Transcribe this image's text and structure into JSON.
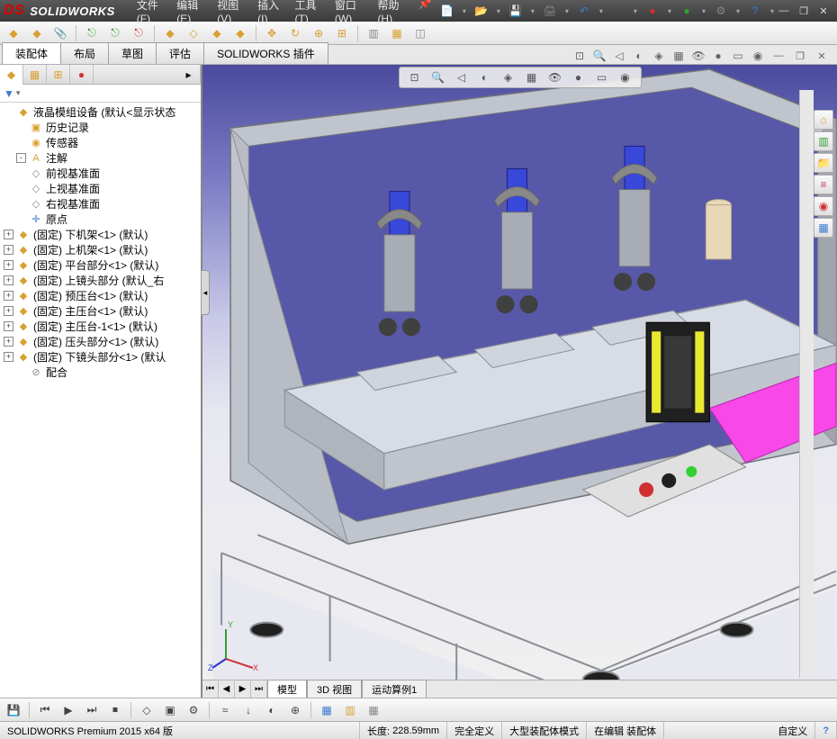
{
  "app": {
    "title": "SOLIDWORKS",
    "logo_prefix": "DS"
  },
  "menu": {
    "items": [
      {
        "label": "文件(F)"
      },
      {
        "label": "编辑(E)"
      },
      {
        "label": "视图(V)"
      },
      {
        "label": "插入(I)"
      },
      {
        "label": "工具(T)"
      },
      {
        "label": "窗口(W)"
      },
      {
        "label": "帮助(H)"
      }
    ]
  },
  "title_icons": [
    {
      "name": "new-icon",
      "glyph": "📄",
      "color": "#fff"
    },
    {
      "name": "open-icon",
      "glyph": "📂",
      "color": "#e8a030"
    },
    {
      "name": "save-icon",
      "glyph": "💾",
      "color": "#3a6ad0"
    },
    {
      "name": "print-icon",
      "glyph": "🖨",
      "color": "#888"
    },
    {
      "name": "undo-icon",
      "glyph": "↶",
      "color": "#3a7ad0"
    },
    {
      "name": "select-icon",
      "glyph": "▭",
      "color": "#444"
    },
    {
      "name": "rebuild-red-icon",
      "glyph": "●",
      "color": "#d03030"
    },
    {
      "name": "rebuild-green-icon",
      "glyph": "●",
      "color": "#30a030"
    },
    {
      "name": "options-icon",
      "glyph": "⚙",
      "color": "#888"
    },
    {
      "name": "help-icon",
      "glyph": "?",
      "color": "#3a7ad0"
    }
  ],
  "toolbar1": [
    {
      "name": "assembly-icon",
      "glyph": "◆",
      "color": "#d8a030"
    },
    {
      "name": "insert-comp-icon",
      "glyph": "◆",
      "color": "#d8a030"
    },
    {
      "name": "clip-icon",
      "glyph": "📎",
      "color": "#888"
    },
    {
      "name": "link-icon",
      "glyph": "⎋",
      "color": "#30a030"
    },
    {
      "name": "link2-icon",
      "glyph": "⎋",
      "color": "#30a030"
    },
    {
      "name": "unlink-icon",
      "glyph": "⎋",
      "color": "#d03030"
    },
    {
      "name": "config-icon",
      "glyph": "◆",
      "color": "#d8a030"
    },
    {
      "name": "explode-icon",
      "glyph": "◇",
      "color": "#d8a030"
    },
    {
      "name": "new-asm-icon",
      "glyph": "◆",
      "color": "#d8a030"
    },
    {
      "name": "mate-icon",
      "glyph": "◆",
      "color": "#d8a030"
    },
    {
      "name": "move-icon",
      "glyph": "✥",
      "color": "#d8a030"
    },
    {
      "name": "rotate-icon",
      "glyph": "↻",
      "color": "#d8a030"
    },
    {
      "name": "smartmate-icon",
      "glyph": "⊕",
      "color": "#d8a030"
    },
    {
      "name": "pattern-icon",
      "glyph": "⊞",
      "color": "#d8a030"
    },
    {
      "name": "mirror-icon",
      "glyph": "▥",
      "color": "#888"
    },
    {
      "name": "bom-icon",
      "glyph": "▦",
      "color": "#d8a030"
    },
    {
      "name": "ref-icon",
      "glyph": "◫",
      "color": "#888"
    }
  ],
  "tabs": {
    "items": [
      {
        "label": "装配体",
        "active": true
      },
      {
        "label": "布局",
        "active": false
      },
      {
        "label": "草图",
        "active": false
      },
      {
        "label": "评估",
        "active": false
      },
      {
        "label": "SOLIDWORKS 插件",
        "active": false
      }
    ]
  },
  "viewport_toolbar": [
    {
      "name": "zoom-fit-icon",
      "glyph": "⊡"
    },
    {
      "name": "zoom-area-icon",
      "glyph": "🔍"
    },
    {
      "name": "prev-view-icon",
      "glyph": "◁"
    },
    {
      "name": "section-icon",
      "glyph": "◐"
    },
    {
      "name": "view-orient-icon",
      "glyph": "◈"
    },
    {
      "name": "display-style-icon",
      "glyph": "▦"
    },
    {
      "name": "hide-show-icon",
      "glyph": "👁"
    },
    {
      "name": "appearance-icon",
      "glyph": "●"
    },
    {
      "name": "scene-icon",
      "glyph": "▭"
    },
    {
      "name": "render-icon",
      "glyph": "◉"
    }
  ],
  "window_controls": {
    "min": "—",
    "max": "❐",
    "close": "✕",
    "inner_min": "—",
    "inner_max": "❐",
    "inner_close": "✕"
  },
  "side_tabs": [
    {
      "name": "feature-tree-icon",
      "glyph": "◆",
      "color": "#d8a030",
      "active": true
    },
    {
      "name": "property-icon",
      "glyph": "▦",
      "color": "#d8a030",
      "active": false
    },
    {
      "name": "config-mgr-icon",
      "glyph": "⊞",
      "color": "#d8a030",
      "active": false
    },
    {
      "name": "appearance-mgr-icon",
      "glyph": "●",
      "color": "#d03030",
      "active": false
    }
  ],
  "filter": {
    "glyph": "▼",
    "color": "#3a7ad0"
  },
  "tree": {
    "root": {
      "icon": "◆",
      "color": "#d8a030",
      "label": "液晶模组设备  (默认<显示状态"
    },
    "history": {
      "icon": "▣",
      "color": "#d8a030",
      "label": "历史记录"
    },
    "sensors": {
      "icon": "◉",
      "color": "#d8a030",
      "label": "传感器"
    },
    "annotations": {
      "icon": "A",
      "color": "#d8a030",
      "label": "注解",
      "expand": "-"
    },
    "planes": [
      {
        "icon": "◇",
        "color": "#888",
        "label": "前视基准面"
      },
      {
        "icon": "◇",
        "color": "#888",
        "label": "上视基准面"
      },
      {
        "icon": "◇",
        "color": "#888",
        "label": "右视基准面"
      }
    ],
    "origin": {
      "icon": "✛",
      "color": "#3a7ad0",
      "label": "原点"
    },
    "components": [
      {
        "label": "(固定) 下机架<1> (默认)"
      },
      {
        "label": "(固定) 上机架<1> (默认)"
      },
      {
        "label": "(固定) 平台部分<1> (默认)"
      },
      {
        "label": "(固定) 上镜头部分 (默认_右"
      },
      {
        "label": "(固定) 预压台<1> (默认)"
      },
      {
        "label": "(固定) 主压台<1> (默认)"
      },
      {
        "label": "(固定) 主压台-1<1> (默认)"
      },
      {
        "label": "(固定) 压头部分<1> (默认)"
      },
      {
        "label": "(固定) 下镜头部分<1> (默认"
      }
    ],
    "mates": {
      "icon": "⊘",
      "color": "#888",
      "label": "配合"
    }
  },
  "right_toolbar": [
    {
      "name": "home-icon",
      "glyph": "⌂",
      "color": "#d8a030"
    },
    {
      "name": "chart-icon",
      "glyph": "▥",
      "color": "#30a030"
    },
    {
      "name": "folder-icon",
      "glyph": "📁",
      "color": "#d8a030"
    },
    {
      "name": "layers-icon",
      "glyph": "≡",
      "color": "#d03080"
    },
    {
      "name": "color-icon",
      "glyph": "◉",
      "color": "#d03030"
    },
    {
      "name": "task-icon",
      "glyph": "▦",
      "color": "#3a7ad0"
    }
  ],
  "triad": {
    "x": "X",
    "y": "Y",
    "z": "Z",
    "x_color": "#d03030",
    "y_color": "#30a030",
    "z_color": "#3030d0"
  },
  "bottom_tabs": {
    "items": [
      {
        "label": "模型",
        "active": true
      },
      {
        "label": "3D 视图",
        "active": false
      },
      {
        "label": "运动算例1",
        "active": false
      }
    ]
  },
  "toolbar3": [
    {
      "name": "save-icon",
      "glyph": "💾",
      "color": "#3a6ad0"
    },
    {
      "name": "anim-back-icon",
      "glyph": "⏮",
      "color": "#444"
    },
    {
      "name": "anim-play-icon",
      "glyph": "▶",
      "color": "#444"
    },
    {
      "name": "anim-fwd-icon",
      "glyph": "⏭",
      "color": "#444"
    },
    {
      "name": "anim-stop-icon",
      "glyph": "⏹",
      "color": "#444"
    },
    {
      "name": "key-icon",
      "glyph": "◇",
      "color": "#444"
    },
    {
      "name": "capture-icon",
      "glyph": "▣",
      "color": "#444"
    },
    {
      "name": "motor-icon",
      "glyph": "⚙",
      "color": "#444"
    },
    {
      "name": "spring-icon",
      "glyph": "≈",
      "color": "#444"
    },
    {
      "name": "force-icon",
      "glyph": "↓",
      "color": "#444"
    },
    {
      "name": "contact-icon",
      "glyph": "◐",
      "color": "#444"
    },
    {
      "name": "gravity-icon",
      "glyph": "⊕",
      "color": "#444"
    },
    {
      "name": "result-icon",
      "glyph": "▦",
      "color": "#3a7ad0"
    },
    {
      "name": "graph-icon",
      "glyph": "▥",
      "color": "#d8a030"
    },
    {
      "name": "calc-icon",
      "glyph": "▦",
      "color": "#888"
    }
  ],
  "status": {
    "product": "SOLIDWORKS Premium 2015 x64 版",
    "length_label": "长度:",
    "length_value": "228.59mm",
    "defined": "完全定义",
    "mode": "大型装配体模式",
    "editing": "在编辑 装配体",
    "custom": "自定义",
    "help_glyph": "?"
  },
  "model_colors": {
    "frame": "#b8bcc4",
    "frame_dark": "#8a8e96",
    "panel_bg": "#5858a8",
    "blue_part": "#3848d8",
    "pink_part": "#f848e8",
    "yellow_part": "#e8e830",
    "black_part": "#202020",
    "red_btn": "#d03030",
    "green_led": "#30d030",
    "floor": "#e8e8f0"
  }
}
